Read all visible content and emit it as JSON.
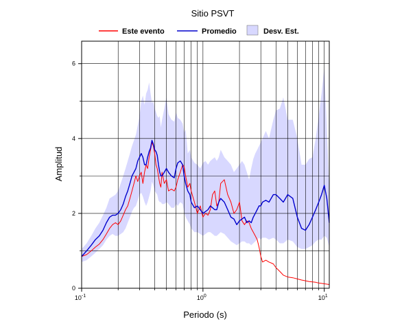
{
  "chart_data": {
    "type": "line",
    "title": "Sitio PSVT",
    "xlabel": "Periodo (s)",
    "ylabel": "Amplitud",
    "x_scale": "log",
    "xlim": [
      0.1,
      11
    ],
    "ylim": [
      0,
      6.6
    ],
    "grid": true,
    "legend_position": "top",
    "x_ticks": [
      {
        "base": "10",
        "exp": "-1"
      },
      {
        "base": "10",
        "exp": "0"
      },
      {
        "base": "10",
        "exp": "1"
      }
    ],
    "y_ticks": [
      "0",
      "2",
      "4",
      "6"
    ],
    "series": [
      {
        "name": "Este evento",
        "color": "#ff0000",
        "style": "line",
        "x": [
          0.1,
          0.11,
          0.12,
          0.13,
          0.14,
          0.15,
          0.16,
          0.17,
          0.18,
          0.19,
          0.2,
          0.21,
          0.22,
          0.23,
          0.24,
          0.25,
          0.26,
          0.27,
          0.28,
          0.29,
          0.3,
          0.31,
          0.32,
          0.33,
          0.34,
          0.35,
          0.36,
          0.37,
          0.38,
          0.39,
          0.4,
          0.41,
          0.42,
          0.43,
          0.44,
          0.45,
          0.46,
          0.48,
          0.5,
          0.52,
          0.55,
          0.58,
          0.6,
          0.62,
          0.65,
          0.68,
          0.7,
          0.72,
          0.75,
          0.78,
          0.8,
          0.85,
          0.9,
          0.95,
          1.0,
          1.05,
          1.1,
          1.15,
          1.2,
          1.25,
          1.3,
          1.35,
          1.4,
          1.5,
          1.6,
          1.7,
          1.8,
          1.9,
          2.0,
          2.1,
          2.2,
          2.3,
          2.4,
          2.5,
          2.6,
          2.7,
          2.8,
          2.9,
          3.0,
          3.1,
          3.3,
          3.5,
          3.8,
          4.0,
          4.3,
          4.6,
          5.0,
          5.5,
          6.0,
          6.5,
          7.0,
          7.5,
          8.0,
          8.5,
          9.0,
          9.5,
          10.0,
          10.5,
          11.0
        ],
        "y": [
          0.85,
          0.9,
          1.0,
          1.1,
          1.18,
          1.3,
          1.45,
          1.6,
          1.7,
          1.75,
          1.7,
          1.8,
          1.95,
          2.1,
          2.2,
          2.4,
          2.6,
          2.8,
          3.0,
          2.85,
          3.0,
          3.1,
          2.8,
          3.1,
          3.3,
          3.2,
          3.5,
          3.7,
          3.9,
          3.8,
          3.6,
          3.3,
          3.2,
          3.0,
          2.8,
          2.7,
          3.1,
          2.8,
          2.9,
          2.6,
          2.65,
          2.6,
          2.7,
          2.9,
          3.1,
          3.3,
          3.25,
          3.0,
          2.7,
          2.8,
          2.6,
          2.3,
          2.0,
          2.2,
          1.9,
          2.0,
          1.95,
          2.1,
          2.5,
          2.6,
          2.2,
          2.3,
          2.8,
          2.9,
          2.5,
          2.3,
          2.0,
          2.1,
          2.3,
          1.8,
          1.7,
          1.8,
          1.75,
          1.6,
          1.5,
          1.4,
          1.3,
          1.1,
          0.85,
          0.7,
          0.75,
          0.7,
          0.65,
          0.55,
          0.45,
          0.35,
          0.3,
          0.28,
          0.25,
          0.22,
          0.2,
          0.18,
          0.17,
          0.16,
          0.14,
          0.13,
          0.12,
          0.11,
          0.1
        ]
      },
      {
        "name": "Promedio",
        "color": "#0000cc",
        "style": "line",
        "x": [
          0.1,
          0.11,
          0.12,
          0.13,
          0.14,
          0.15,
          0.16,
          0.17,
          0.18,
          0.19,
          0.2,
          0.21,
          0.22,
          0.23,
          0.24,
          0.25,
          0.26,
          0.27,
          0.28,
          0.29,
          0.3,
          0.31,
          0.32,
          0.33,
          0.34,
          0.35,
          0.36,
          0.37,
          0.38,
          0.39,
          0.4,
          0.41,
          0.42,
          0.43,
          0.44,
          0.45,
          0.46,
          0.48,
          0.5,
          0.52,
          0.55,
          0.58,
          0.6,
          0.62,
          0.65,
          0.68,
          0.7,
          0.72,
          0.75,
          0.78,
          0.8,
          0.85,
          0.9,
          0.95,
          1.0,
          1.05,
          1.1,
          1.15,
          1.2,
          1.25,
          1.3,
          1.35,
          1.4,
          1.5,
          1.6,
          1.7,
          1.8,
          1.9,
          2.0,
          2.1,
          2.2,
          2.3,
          2.4,
          2.5,
          2.6,
          2.7,
          2.8,
          2.9,
          3.0,
          3.1,
          3.3,
          3.5,
          3.8,
          4.0,
          4.3,
          4.6,
          5.0,
          5.5,
          6.0,
          6.5,
          7.0,
          7.5,
          8.0,
          8.5,
          9.0,
          9.5,
          10.0,
          10.5,
          11.0
        ],
        "y": [
          0.85,
          1.0,
          1.15,
          1.3,
          1.4,
          1.55,
          1.75,
          1.9,
          1.95,
          1.95,
          2.0,
          2.1,
          2.25,
          2.45,
          2.6,
          2.8,
          3.0,
          3.1,
          3.2,
          3.4,
          3.5,
          3.6,
          3.5,
          3.3,
          3.3,
          3.5,
          3.65,
          3.75,
          3.95,
          3.85,
          3.7,
          3.65,
          3.55,
          3.3,
          3.1,
          3.0,
          3.0,
          3.1,
          3.2,
          3.1,
          3.0,
          2.95,
          3.2,
          3.35,
          3.4,
          3.3,
          3.0,
          2.8,
          2.6,
          2.5,
          2.3,
          2.15,
          2.2,
          2.1,
          2.0,
          2.05,
          2.1,
          2.2,
          2.15,
          2.1,
          2.1,
          2.3,
          2.4,
          2.3,
          2.1,
          1.9,
          1.85,
          1.7,
          1.8,
          1.85,
          1.9,
          1.75,
          1.8,
          1.75,
          1.9,
          2.0,
          2.1,
          2.2,
          2.2,
          2.3,
          2.35,
          2.3,
          2.5,
          2.5,
          2.4,
          2.3,
          2.5,
          2.4,
          1.9,
          1.6,
          1.55,
          1.7,
          1.9,
          2.1,
          2.3,
          2.5,
          2.75,
          2.4,
          1.75
        ]
      },
      {
        "name": "Desv. Est.",
        "color": "#d8d8ff",
        "style": "band",
        "x": [
          0.1,
          0.11,
          0.12,
          0.13,
          0.14,
          0.15,
          0.16,
          0.17,
          0.18,
          0.19,
          0.2,
          0.21,
          0.22,
          0.23,
          0.24,
          0.25,
          0.26,
          0.27,
          0.28,
          0.29,
          0.3,
          0.31,
          0.32,
          0.33,
          0.34,
          0.35,
          0.36,
          0.37,
          0.38,
          0.39,
          0.4,
          0.41,
          0.42,
          0.43,
          0.44,
          0.45,
          0.46,
          0.48,
          0.5,
          0.52,
          0.55,
          0.58,
          0.6,
          0.62,
          0.65,
          0.68,
          0.7,
          0.72,
          0.75,
          0.78,
          0.8,
          0.85,
          0.9,
          0.95,
          1.0,
          1.05,
          1.1,
          1.15,
          1.2,
          1.25,
          1.3,
          1.35,
          1.4,
          1.5,
          1.6,
          1.7,
          1.8,
          1.9,
          2.0,
          2.1,
          2.2,
          2.3,
          2.4,
          2.5,
          2.6,
          2.7,
          2.8,
          2.9,
          3.0,
          3.1,
          3.3,
          3.5,
          3.8,
          4.0,
          4.3,
          4.6,
          5.0,
          5.5,
          6.0,
          6.5,
          7.0,
          7.5,
          8.0,
          8.5,
          9.0,
          9.5,
          10.0,
          10.5,
          11.0
        ],
        "upper": [
          1.05,
          1.2,
          1.4,
          1.6,
          1.75,
          1.95,
          2.15,
          2.4,
          2.45,
          2.5,
          2.6,
          2.8,
          3.0,
          3.2,
          3.4,
          3.6,
          3.8,
          3.95,
          4.1,
          4.35,
          4.6,
          5.0,
          5.15,
          4.9,
          5.2,
          5.3,
          5.5,
          5.2,
          4.95,
          5.0,
          4.8,
          4.7,
          4.6,
          4.55,
          4.6,
          4.3,
          4.5,
          4.8,
          5.1,
          4.65,
          4.5,
          4.45,
          4.7,
          4.55,
          4.5,
          4.4,
          4.15,
          4.25,
          3.6,
          3.7,
          3.5,
          3.35,
          3.3,
          3.2,
          3.35,
          3.4,
          3.3,
          3.4,
          3.45,
          3.5,
          3.4,
          3.5,
          3.7,
          3.5,
          3.4,
          3.3,
          3.1,
          3.2,
          3.3,
          3.4,
          3.3,
          3.1,
          2.9,
          3.2,
          3.45,
          3.6,
          3.7,
          3.8,
          3.9,
          4.0,
          4.2,
          4.0,
          4.5,
          4.75,
          4.8,
          5.1,
          4.5,
          4.5,
          4.0,
          3.3,
          3.3,
          3.45,
          3.5,
          4.0,
          4.6,
          5.2,
          5.9,
          4.3,
          2.6
        ]
      }
    ],
    "band_lower": [
      0.7,
      0.75,
      0.85,
      0.95,
      1.05,
      1.15,
      1.3,
      1.4,
      1.45,
      1.4,
      1.4,
      1.45,
      1.5,
      1.6,
      1.75,
      1.9,
      2.05,
      2.15,
      2.2,
      2.35,
      2.5,
      2.55,
      2.45,
      2.3,
      2.2,
      2.3,
      2.45,
      2.6,
      2.85,
      2.75,
      2.6,
      2.55,
      2.5,
      2.35,
      2.3,
      2.3,
      2.25,
      2.25,
      2.3,
      2.25,
      2.15,
      2.15,
      2.25,
      2.2,
      2.3,
      2.25,
      2.05,
      1.9,
      1.8,
      1.7,
      1.6,
      1.5,
      1.5,
      1.45,
      1.4,
      1.45,
      1.5,
      1.5,
      1.45,
      1.4,
      1.4,
      1.45,
      1.5,
      1.45,
      1.35,
      1.25,
      1.2,
      1.15,
      1.2,
      1.25,
      1.25,
      1.2,
      1.2,
      1.15,
      1.2,
      1.25,
      1.3,
      1.35,
      1.3,
      1.35,
      1.35,
      1.3,
      1.35,
      1.3,
      1.2,
      1.2,
      1.3,
      1.25,
      1.1,
      1.05,
      1.05,
      1.1,
      1.15,
      1.25,
      1.3,
      1.3,
      1.4,
      1.35,
      1.1
    ]
  }
}
